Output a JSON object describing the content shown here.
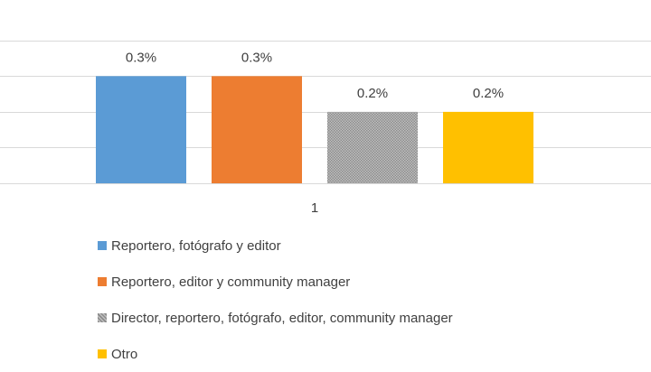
{
  "chart_data": {
    "type": "bar",
    "categories": [
      "1"
    ],
    "series": [
      {
        "name": "Reportero, fotógrafo y editor",
        "values": [
          0.3
        ],
        "label": "0.3%",
        "color": "#5b9bd5",
        "pattern": "solid"
      },
      {
        "name": "Reportero, editor y community manager",
        "values": [
          0.3
        ],
        "label": "0.3%",
        "color": "#ed7d31",
        "pattern": "solid"
      },
      {
        "name": "Director, reportero, fotógrafo, editor,  community manager",
        "values": [
          0.2
        ],
        "label": "0.2%",
        "color": "#a5a5a5",
        "pattern": "dotted"
      },
      {
        "name": "Otro",
        "values": [
          0.2
        ],
        "label": "0.2%",
        "color": "#ffc000",
        "pattern": "solid"
      }
    ],
    "title": "",
    "xlabel": "",
    "ylabel": "",
    "ylim": [
      0,
      0.45
    ],
    "grid": true,
    "legend_position": "bottom-left"
  }
}
